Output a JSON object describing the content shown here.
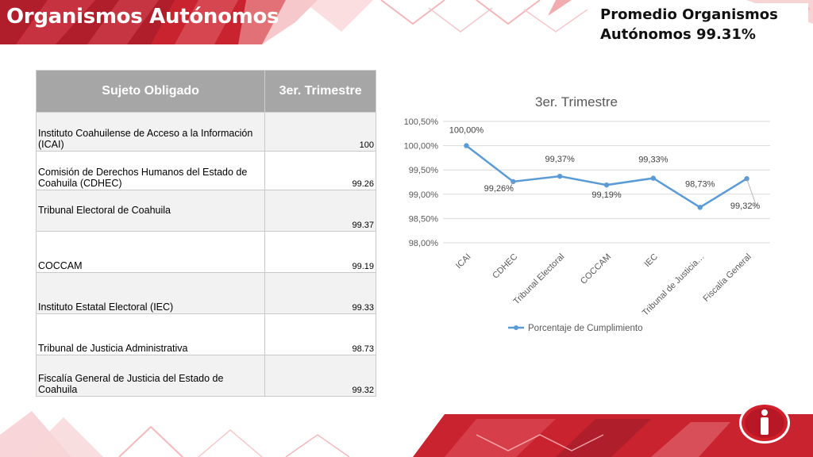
{
  "header": {
    "title": "Organismos Autónomos",
    "average_line1": "Promedio Organismos",
    "average_line2": "Autónomos 99.31%"
  },
  "table": {
    "headers": [
      "Sujeto Obligado",
      "3er. Trimestre"
    ],
    "rows": [
      {
        "name": "Instituto Coahuilense de Acceso a la Información (ICAI)",
        "value": "100"
      },
      {
        "name": "Comisión de Derechos Humanos del Estado de Coahuila (CDHEC)",
        "value": "99.26"
      },
      {
        "name": "Tribunal Electoral de Coahuila",
        "value": "99.37"
      },
      {
        "name": "COCCAM",
        "value": "99.19"
      },
      {
        "name": "Instituto Estatal Electoral (IEC)",
        "value": "99.33"
      },
      {
        "name": "Tribunal de Justicia Administrativa",
        "value": "98.73"
      },
      {
        "name": "Fiscalía General de Justicia del Estado de Coahuila",
        "value": "99.32"
      }
    ]
  },
  "chart_data": {
    "type": "line",
    "title": "3er. Trimestre",
    "categories": [
      "ICAI",
      "CDHEC",
      "Tribunal Electoral",
      "COCCAM",
      "IEC",
      "Tribunal de Justicia…",
      "Fiscalía General"
    ],
    "series": [
      {
        "name": "Porcentaje de Cumplimiento",
        "values": [
          100.0,
          99.26,
          99.37,
          99.19,
          99.33,
          98.73,
          99.32
        ],
        "data_labels": [
          "100,00%",
          "99,26%",
          "99,37%",
          "99,19%",
          "99,33%",
          "98,73%",
          "99,32%"
        ],
        "color": "#5b9bd5"
      }
    ],
    "y_ticks": [
      "100,50%",
      "100,00%",
      "99,50%",
      "99,00%",
      "98,50%",
      "98,00%"
    ],
    "ylim": [
      98.0,
      100.5
    ],
    "grid": true,
    "legend_position": "bottom"
  },
  "colors": {
    "brand_red": "#d42a35",
    "brand_dark_red": "#9e1a2a",
    "line": "#5b9bd5"
  },
  "icons": {
    "logo": "info-i-logo"
  }
}
